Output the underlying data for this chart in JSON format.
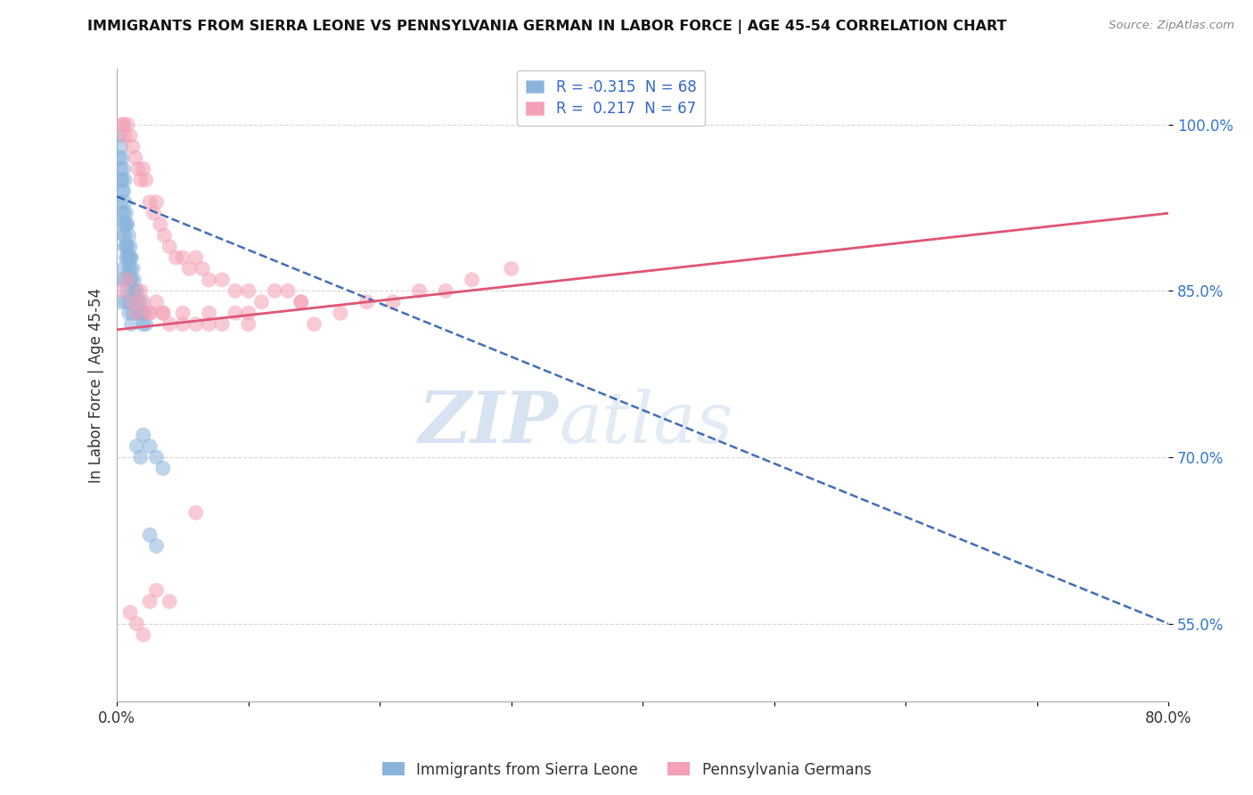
{
  "title": "IMMIGRANTS FROM SIERRA LEONE VS PENNSYLVANIA GERMAN IN LABOR FORCE | AGE 45-54 CORRELATION CHART",
  "source": "Source: ZipAtlas.com",
  "ylabel": "In Labor Force | Age 45-54",
  "xlim": [
    0.0,
    0.8
  ],
  "ylim": [
    0.48,
    1.05
  ],
  "yticks": [
    0.55,
    0.7,
    0.85,
    1.0
  ],
  "ytick_labels": [
    "55.0%",
    "70.0%",
    "85.0%",
    "100.0%"
  ],
  "xtick_labels": [
    "0.0%",
    "",
    "",
    "",
    "",
    "",
    "",
    "",
    "80.0%"
  ],
  "blue_color": "#8AB4DC",
  "pink_color": "#F4A0B5",
  "blue_line_color": "#2255AA",
  "pink_line_color": "#E05575",
  "watermark_zip": "ZIP",
  "watermark_atlas": "atlas",
  "legend_label_blue": "Immigrants from Sierra Leone",
  "legend_label_pink": "Pennsylvania Germans",
  "legend_blue_text": "R = -0.315  N = 68",
  "legend_pink_text": "R =  0.217  N = 67",
  "blue_x": [
    0.002,
    0.002,
    0.003,
    0.003,
    0.003,
    0.003,
    0.004,
    0.004,
    0.004,
    0.004,
    0.005,
    0.005,
    0.005,
    0.005,
    0.005,
    0.006,
    0.006,
    0.006,
    0.006,
    0.006,
    0.007,
    0.007,
    0.007,
    0.007,
    0.008,
    0.008,
    0.008,
    0.009,
    0.009,
    0.009,
    0.01,
    0.01,
    0.01,
    0.01,
    0.011,
    0.011,
    0.012,
    0.012,
    0.013,
    0.013,
    0.014,
    0.015,
    0.015,
    0.016,
    0.017,
    0.018,
    0.019,
    0.02,
    0.021,
    0.022,
    0.003,
    0.004,
    0.005,
    0.006,
    0.007,
    0.008,
    0.009,
    0.01,
    0.011,
    0.012,
    0.015,
    0.018,
    0.02,
    0.025,
    0.03,
    0.035,
    0.025,
    0.03
  ],
  "blue_y": [
    0.99,
    0.97,
    0.98,
    0.96,
    0.95,
    0.93,
    0.97,
    0.95,
    0.94,
    0.92,
    0.96,
    0.94,
    0.92,
    0.91,
    0.9,
    0.95,
    0.93,
    0.91,
    0.9,
    0.89,
    0.92,
    0.91,
    0.89,
    0.88,
    0.91,
    0.89,
    0.88,
    0.9,
    0.88,
    0.87,
    0.89,
    0.88,
    0.87,
    0.86,
    0.88,
    0.86,
    0.87,
    0.85,
    0.86,
    0.84,
    0.85,
    0.85,
    0.83,
    0.84,
    0.83,
    0.84,
    0.83,
    0.82,
    0.83,
    0.82,
    0.84,
    0.86,
    0.87,
    0.86,
    0.84,
    0.85,
    0.83,
    0.84,
    0.82,
    0.83,
    0.71,
    0.7,
    0.72,
    0.71,
    0.7,
    0.69,
    0.63,
    0.62
  ],
  "pink_x": [
    0.004,
    0.005,
    0.006,
    0.008,
    0.01,
    0.012,
    0.014,
    0.016,
    0.018,
    0.02,
    0.022,
    0.025,
    0.028,
    0.03,
    0.033,
    0.036,
    0.04,
    0.045,
    0.05,
    0.055,
    0.06,
    0.065,
    0.07,
    0.08,
    0.09,
    0.1,
    0.11,
    0.12,
    0.13,
    0.14,
    0.015,
    0.02,
    0.025,
    0.03,
    0.035,
    0.04,
    0.05,
    0.06,
    0.07,
    0.08,
    0.09,
    0.1,
    0.15,
    0.17,
    0.19,
    0.21,
    0.23,
    0.25,
    0.27,
    0.3,
    0.004,
    0.008,
    0.012,
    0.018,
    0.025,
    0.035,
    0.05,
    0.07,
    0.1,
    0.14,
    0.01,
    0.015,
    0.02,
    0.025,
    0.03,
    0.04,
    0.06
  ],
  "pink_y": [
    1.0,
    1.0,
    0.99,
    1.0,
    0.99,
    0.98,
    0.97,
    0.96,
    0.95,
    0.96,
    0.95,
    0.93,
    0.92,
    0.93,
    0.91,
    0.9,
    0.89,
    0.88,
    0.88,
    0.87,
    0.88,
    0.87,
    0.86,
    0.86,
    0.85,
    0.85,
    0.84,
    0.85,
    0.85,
    0.84,
    0.83,
    0.84,
    0.83,
    0.84,
    0.83,
    0.82,
    0.83,
    0.82,
    0.83,
    0.82,
    0.83,
    0.82,
    0.82,
    0.83,
    0.84,
    0.84,
    0.85,
    0.85,
    0.86,
    0.87,
    0.85,
    0.86,
    0.84,
    0.85,
    0.83,
    0.83,
    0.82,
    0.82,
    0.83,
    0.84,
    0.56,
    0.55,
    0.54,
    0.57,
    0.58,
    0.57,
    0.65
  ]
}
